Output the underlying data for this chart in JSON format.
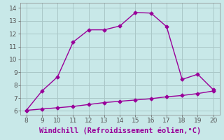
{
  "x_upper": [
    8,
    9,
    10,
    11,
    12,
    13,
    14,
    15,
    16,
    17,
    18,
    19,
    20
  ],
  "y_upper": [
    6.05,
    7.55,
    8.65,
    11.35,
    12.3,
    12.3,
    12.6,
    13.65,
    13.6,
    12.55,
    8.45,
    8.85,
    7.65
  ],
  "x_lower": [
    8,
    9,
    10,
    11,
    12,
    13,
    14,
    15,
    16,
    17,
    18,
    19,
    20
  ],
  "y_lower": [
    6.05,
    6.15,
    6.25,
    6.35,
    6.5,
    6.65,
    6.75,
    6.85,
    6.95,
    7.1,
    7.2,
    7.35,
    7.55
  ],
  "line_color": "#990099",
  "background_color": "#c8e8e8",
  "plot_bg_color": "#c8e8e8",
  "grid_color": "#aac8c8",
  "xlabel": "Windchill (Refroidissement éolien,°C)",
  "xlabel_color": "#990099",
  "xlabel_bg": "#a080a0",
  "xlim": [
    7.6,
    20.4
  ],
  "ylim": [
    5.7,
    14.4
  ],
  "xticks": [
    8,
    9,
    10,
    11,
    12,
    13,
    14,
    15,
    16,
    17,
    18,
    19,
    20
  ],
  "yticks": [
    6,
    7,
    8,
    9,
    10,
    11,
    12,
    13,
    14
  ],
  "tick_fontsize": 6.5,
  "xlabel_fontsize": 7.5,
  "marker": "D",
  "marker_size": 2.5,
  "line_width": 1.0
}
